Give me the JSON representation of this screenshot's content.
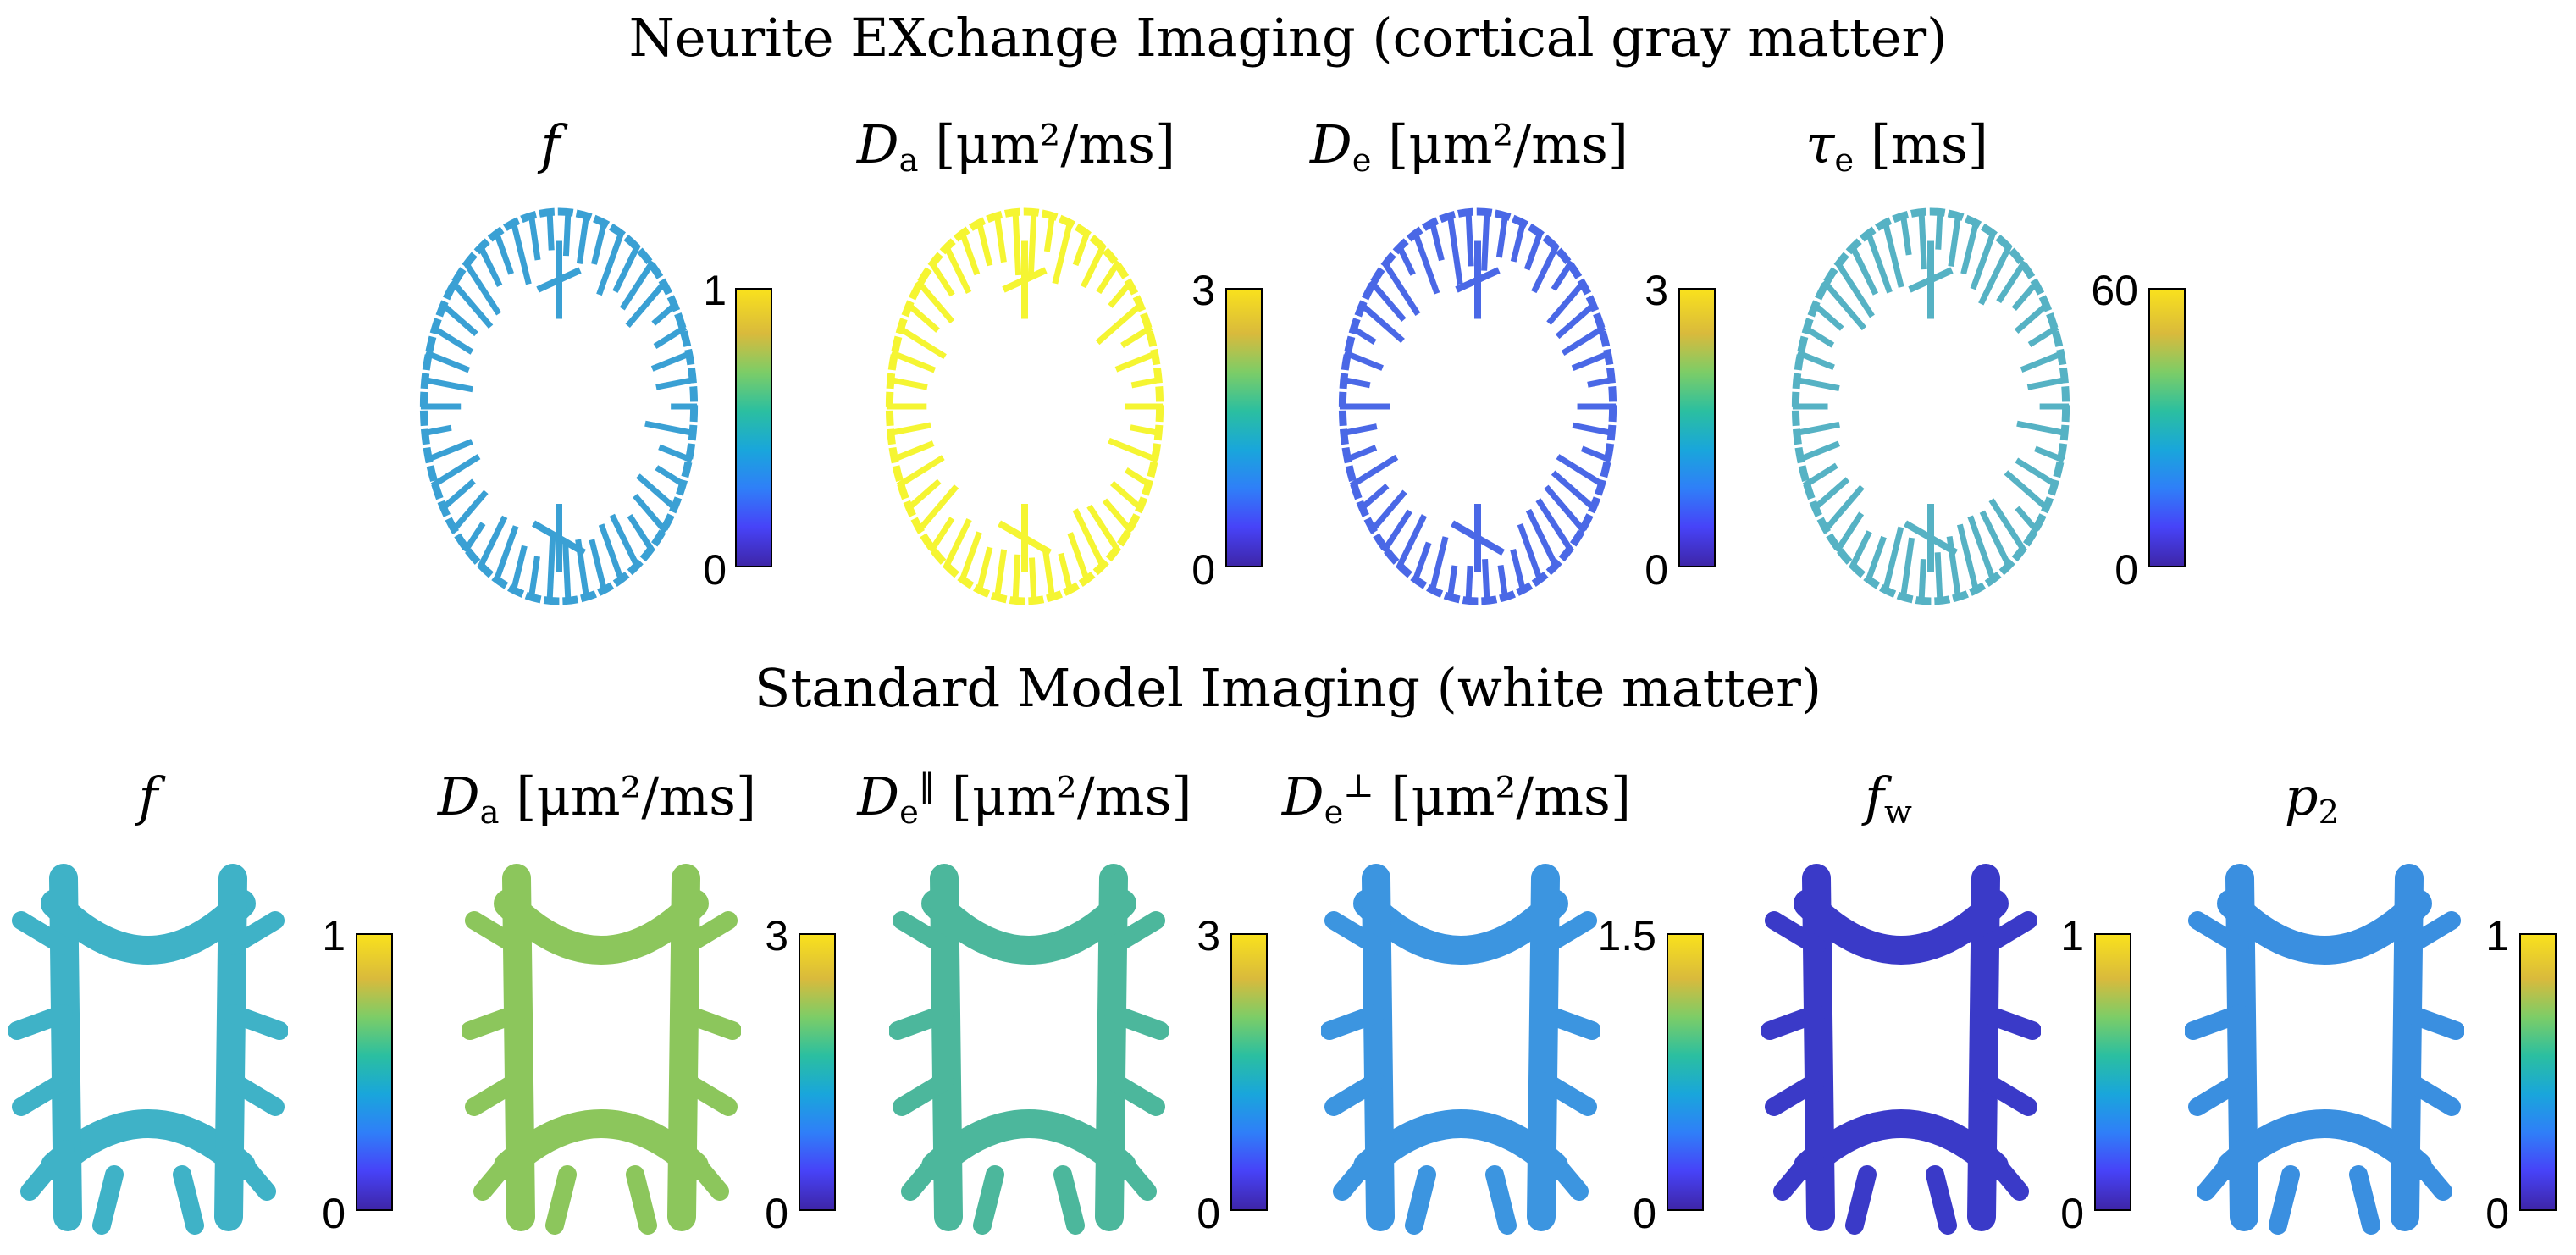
{
  "titles": {
    "nexi": "Neurite EXchange Imaging (cortical gray matter)",
    "smi": "Standard Model Imaging (white matter)"
  },
  "nexi": {
    "panels": [
      {
        "symbol": "f",
        "sub": "",
        "sup": "",
        "unit": "",
        "tick_max": "1",
        "tick_min": "0"
      },
      {
        "symbol": "D",
        "sub": "a",
        "sup": "",
        "unit": "[μm²/ms]",
        "tick_max": "3",
        "tick_min": "0"
      },
      {
        "symbol": "D",
        "sub": "e",
        "sup": "",
        "unit": "[μm²/ms]",
        "tick_max": "3",
        "tick_min": "0"
      },
      {
        "symbol": "τ",
        "sub": "e",
        "sup": "",
        "unit": "[ms]",
        "tick_max": "60",
        "tick_min": "0"
      }
    ]
  },
  "smi": {
    "panels": [
      {
        "symbol": "f",
        "sub": "",
        "sup": "",
        "unit": "",
        "tick_max": "1",
        "tick_min": "0"
      },
      {
        "symbol": "D",
        "sub": "a",
        "sup": "",
        "unit": "[μm²/ms]",
        "tick_max": "3",
        "tick_min": "0"
      },
      {
        "symbol": "D",
        "sub": "e",
        "sup": "‖",
        "unit": "[μm²/ms]",
        "tick_max": "3",
        "tick_min": "0"
      },
      {
        "symbol": "D",
        "sub": "e",
        "sup": "⊥",
        "unit": "[μm²/ms]",
        "tick_max": "1.5",
        "tick_min": "0"
      },
      {
        "symbol": "f",
        "sub": "w",
        "sup": "",
        "unit": "",
        "tick_max": "1",
        "tick_min": "0"
      },
      {
        "symbol": "p",
        "sub": "2",
        "sup": "",
        "unit": "",
        "tick_max": "1",
        "tick_min": "0"
      }
    ]
  },
  "colormap": {
    "name": "parula",
    "stops": [
      "#3e26a8",
      "#4743f8",
      "#2f7ff8",
      "#19a6db",
      "#2bbfa0",
      "#7ccd67",
      "#d9ba3c",
      "#f9e11d"
    ]
  },
  "maps": {
    "nexi": [
      {
        "fill": "#3aa0d4",
        "level": 0.4
      },
      {
        "fill": "#f5f532",
        "level": 1.0
      },
      {
        "fill": "#4a68e6",
        "level": 0.25
      },
      {
        "fill": "#56b2c4",
        "level": 0.45
      }
    ],
    "smi": [
      {
        "fill": "#3fb2c7",
        "level": 0.45
      },
      {
        "fill": "#8cc65c",
        "level": 0.6
      },
      {
        "fill": "#4cb79c",
        "level": 0.55
      },
      {
        "fill": "#3c95e0",
        "level": 0.45
      },
      {
        "fill": "#3a3ac8",
        "level": 0.1
      },
      {
        "fill": "#3a8fe0",
        "level": 0.4
      }
    ]
  }
}
